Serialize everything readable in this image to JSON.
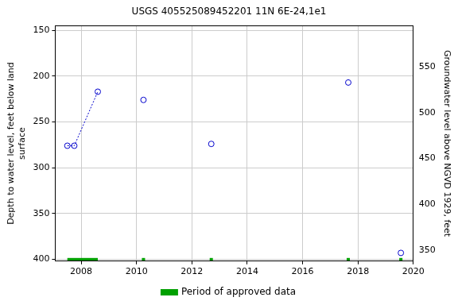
{
  "chart_data": {
    "type": "scatter",
    "title": "USGS 405525089452201 11N 6E-24,1e1",
    "y_label": [
      "Depth to water level, feet below land",
      "surface"
    ],
    "y2_label": "Groundwater level above NGVD 1929, feet",
    "xlim": [
      2007.06,
      2020
    ],
    "xticks": [
      2008,
      2010,
      2012,
      2014,
      2016,
      2018,
      2020
    ],
    "ylim": [
      402,
      145
    ],
    "yticks": [
      150,
      200,
      250,
      300,
      350,
      400
    ],
    "y2lim": [
      338,
      595
    ],
    "y2ticks": [
      350,
      400,
      450,
      500,
      550
    ],
    "grid": true,
    "legend": "bottom",
    "series": [
      {
        "color": "#0000cc",
        "marker": "circle-open",
        "line_style": "dotted",
        "x": [
          2007.5,
          2007.75,
          2008.6
        ],
        "values": [
          276,
          276,
          217
        ]
      },
      {
        "color": "#0000cc",
        "marker": "circle-open",
        "line_style": "none",
        "x": [
          2010.25,
          2012.7,
          2017.65,
          2019.55
        ],
        "values": [
          226,
          274,
          207,
          393
        ]
      }
    ],
    "approved_periods": {
      "name": "Period of approved data",
      "color": "#00a000",
      "ranges": [
        [
          2007.5,
          2008.6
        ],
        [
          2010.25,
          2010.25
        ],
        [
          2012.7,
          2012.7
        ],
        [
          2017.65,
          2017.65
        ],
        [
          2019.55,
          2019.55
        ]
      ]
    }
  }
}
